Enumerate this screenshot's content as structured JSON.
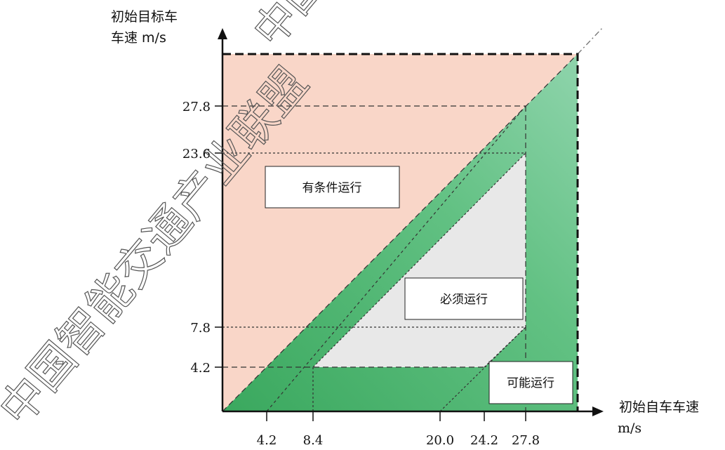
{
  "y_axis": {
    "title_line1": "初始目标车",
    "title_line2": "车速 m/s",
    "ticks": [
      "27.8",
      "23.6",
      "7.8",
      "4.2"
    ]
  },
  "x_axis": {
    "title_line1": "初始自车车速",
    "title_line2": "m/s",
    "ticks": [
      "4.2",
      "8.4",
      "20.0",
      "24.2",
      "27.8"
    ]
  },
  "regions": {
    "conditional": "有条件运行",
    "mandatory": "必须运行",
    "possible": "可能运行"
  },
  "watermark": {
    "text_diag": "中国智能交通产业联盟",
    "text_top": "中国"
  },
  "colors": {
    "conditional_fill": "#f9d6c8",
    "green_fill": "#5dbf7a",
    "mandatory_fill": "#e8e8e8"
  }
}
